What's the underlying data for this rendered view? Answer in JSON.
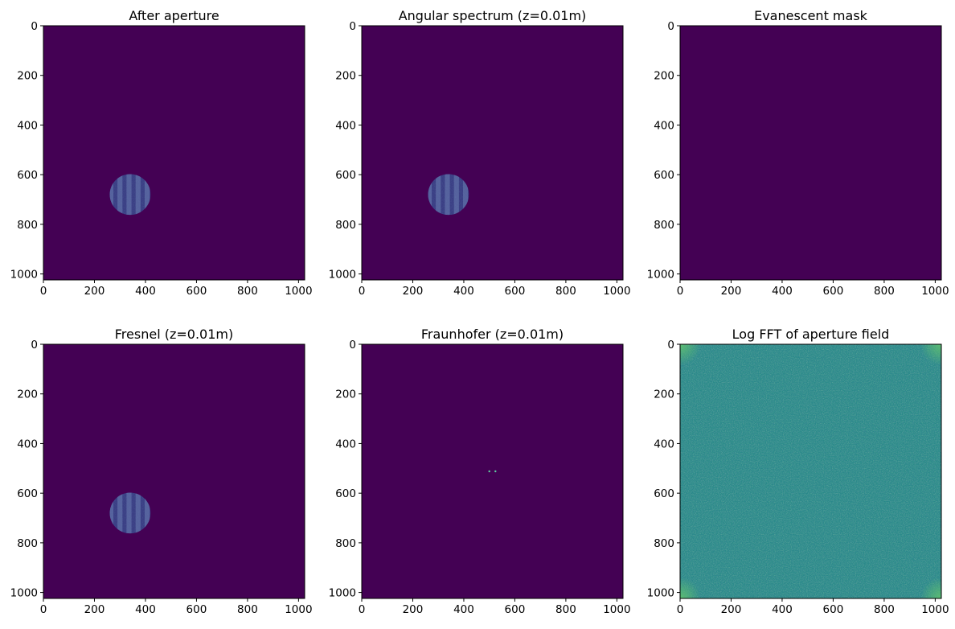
{
  "figure": {
    "colormap": "viridis",
    "colors": {
      "background": "#440154",
      "spectrum_mid": "#2a8a8a",
      "stripe_dark": "#3b3f85",
      "stripe_light": "#5b68a2",
      "peak": "#5fd0a0",
      "corner_glow": "#5fc070"
    }
  },
  "chart_data": [
    {
      "id": "after-aperture",
      "type": "heatmap",
      "title": "After aperture",
      "xlabel": "",
      "ylabel": "",
      "xlim": [
        0,
        1024
      ],
      "ylim": [
        1024,
        0
      ],
      "xticks": [
        0,
        200,
        400,
        600,
        800,
        1000
      ],
      "yticks": [
        0,
        200,
        400,
        600,
        800,
        1000
      ],
      "content": "aperture",
      "aperture": {
        "center_x": 340,
        "center_y": 680,
        "radius": 80,
        "stripes": 5
      },
      "colormap": "viridis"
    },
    {
      "id": "angular-spectrum",
      "type": "heatmap",
      "title": "Angular spectrum (z=0.01m)",
      "xlabel": "",
      "ylabel": "",
      "xlim": [
        0,
        1024
      ],
      "ylim": [
        1024,
        0
      ],
      "xticks": [
        0,
        200,
        400,
        600,
        800,
        1000
      ],
      "yticks": [
        0,
        200,
        400,
        600,
        800,
        1000
      ],
      "content": "aperture",
      "aperture": {
        "center_x": 340,
        "center_y": 680,
        "radius": 80,
        "stripes": 5
      },
      "colormap": "viridis"
    },
    {
      "id": "evanescent-mask",
      "type": "heatmap",
      "title": "Evanescent mask",
      "xlabel": "",
      "ylabel": "",
      "xlim": [
        0,
        1024
      ],
      "ylim": [
        1024,
        0
      ],
      "xticks": [
        0,
        200,
        400,
        600,
        800,
        1000
      ],
      "yticks": [
        0,
        200,
        400,
        600,
        800,
        1000
      ],
      "content": "uniform",
      "colormap": "viridis"
    },
    {
      "id": "fresnel",
      "type": "heatmap",
      "title": "Fresnel (z=0.01m)",
      "xlabel": "",
      "ylabel": "",
      "xlim": [
        0,
        1024
      ],
      "ylim": [
        1024,
        0
      ],
      "xticks": [
        0,
        200,
        400,
        600,
        800,
        1000
      ],
      "yticks": [
        0,
        200,
        400,
        600,
        800,
        1000
      ],
      "content": "aperture",
      "aperture": {
        "center_x": 340,
        "center_y": 680,
        "radius": 80,
        "stripes": 5
      },
      "colormap": "viridis"
    },
    {
      "id": "fraunhofer",
      "type": "heatmap",
      "title": "Fraunhofer (z=0.01m)",
      "xlabel": "",
      "ylabel": "",
      "xlim": [
        0,
        1024
      ],
      "ylim": [
        1024,
        0
      ],
      "xticks": [
        0,
        200,
        400,
        600,
        800,
        1000
      ],
      "yticks": [
        0,
        200,
        400,
        600,
        800,
        1000
      ],
      "content": "peaks",
      "peaks": [
        {
          "x": 500,
          "y": 512
        },
        {
          "x": 524,
          "y": 512
        }
      ],
      "colormap": "viridis"
    },
    {
      "id": "log-fft",
      "type": "heatmap",
      "title": "Log FFT of aperture field",
      "xlabel": "",
      "ylabel": "",
      "xlim": [
        0,
        1024
      ],
      "ylim": [
        1024,
        0
      ],
      "xticks": [
        0,
        200,
        400,
        600,
        800,
        1000
      ],
      "yticks": [
        0,
        200,
        400,
        600,
        800,
        1000
      ],
      "content": "fft",
      "colormap": "viridis"
    }
  ]
}
